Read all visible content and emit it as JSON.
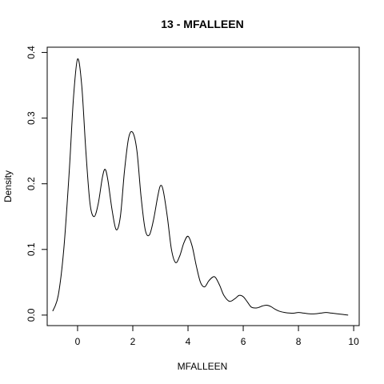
{
  "chart_data": {
    "type": "line",
    "title": "13 - MFALLEEN",
    "xlabel": "MFALLEEN",
    "ylabel": "Density",
    "xlim": [
      -1.1,
      10.2
    ],
    "ylim": [
      -0.016,
      0.408
    ],
    "x_ticks": [
      0,
      2,
      4,
      6,
      8,
      10
    ],
    "y_ticks": [
      0.0,
      0.1,
      0.2,
      0.3,
      0.4
    ],
    "y_tick_labels": [
      "0.0",
      "0.1",
      "0.2",
      "0.3",
      "0.4"
    ],
    "grid": false,
    "series": [
      {
        "x": [
          -0.9,
          -0.7,
          -0.5,
          -0.3,
          -0.15,
          0,
          0.15,
          0.3,
          0.45,
          0.6,
          0.75,
          0.9,
          1.0,
          1.1,
          1.25,
          1.4,
          1.55,
          1.7,
          1.85,
          2.0,
          2.15,
          2.3,
          2.45,
          2.6,
          2.75,
          2.9,
          3.0,
          3.1,
          3.25,
          3.4,
          3.55,
          3.7,
          3.85,
          4.0,
          4.15,
          4.3,
          4.45,
          4.6,
          4.75,
          4.9,
          5.0,
          5.15,
          5.3,
          5.5,
          5.7,
          5.85,
          6.0,
          6.15,
          6.3,
          6.5,
          6.7,
          6.85,
          7.0,
          7.15,
          7.3,
          7.5,
          7.7,
          7.85,
          8.0,
          8.2,
          8.4,
          8.6,
          8.8,
          9.0,
          9.2,
          9.4,
          9.6,
          9.8
        ],
        "y": [
          0.006,
          0.03,
          0.1,
          0.22,
          0.33,
          0.39,
          0.35,
          0.25,
          0.17,
          0.15,
          0.17,
          0.21,
          0.222,
          0.205,
          0.16,
          0.13,
          0.15,
          0.22,
          0.27,
          0.278,
          0.25,
          0.18,
          0.13,
          0.122,
          0.145,
          0.18,
          0.197,
          0.19,
          0.15,
          0.1,
          0.08,
          0.09,
          0.11,
          0.12,
          0.105,
          0.075,
          0.05,
          0.043,
          0.052,
          0.058,
          0.057,
          0.045,
          0.03,
          0.021,
          0.025,
          0.03,
          0.028,
          0.02,
          0.012,
          0.011,
          0.014,
          0.015,
          0.013,
          0.009,
          0.006,
          0.004,
          0.003,
          0.003,
          0.004,
          0.003,
          0.002,
          0.002,
          0.003,
          0.004,
          0.003,
          0.002,
          0.001,
          0.0
        ]
      }
    ]
  }
}
